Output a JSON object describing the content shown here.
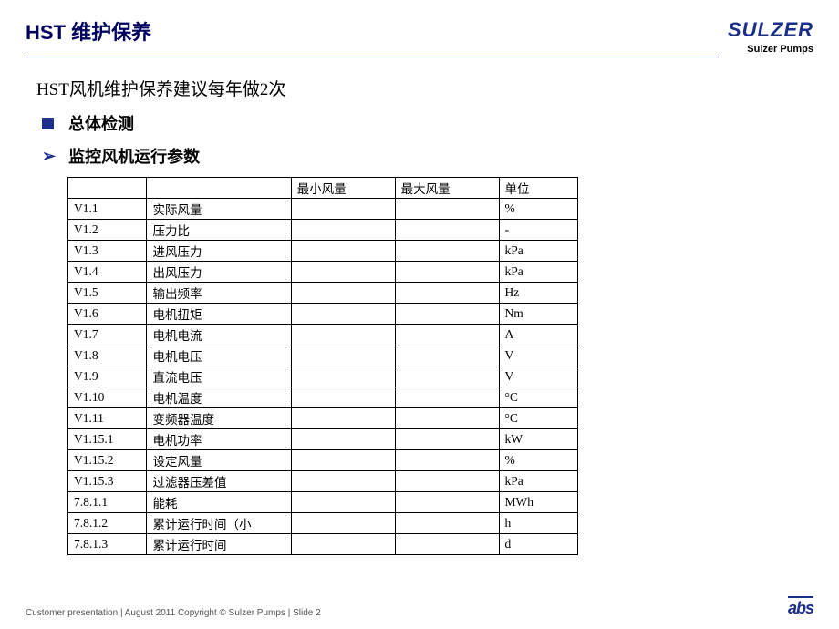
{
  "header": {
    "title": "HST 维护保养",
    "brand_logo": "SULZER",
    "brand_sub": "Sulzer Pumps"
  },
  "content": {
    "subtitle": "HST风机维护保养建议每年做2次",
    "bullet1": "总体检测",
    "bullet2": "监控风机运行参数"
  },
  "table": {
    "headers": [
      "",
      "",
      "最小风量",
      "最大风量",
      "单位"
    ],
    "rows": [
      [
        "V1.1",
        "实际风量",
        "",
        "",
        "%"
      ],
      [
        "V1.2",
        "压力比",
        "",
        "",
        "-"
      ],
      [
        "V1.3",
        "进风压力",
        "",
        "",
        "kPa"
      ],
      [
        "V1.4",
        "出风压力",
        "",
        "",
        "kPa"
      ],
      [
        "V1.5",
        "输出频率",
        "",
        "",
        "Hz"
      ],
      [
        "V1.6",
        "电机扭矩",
        "",
        "",
        "Nm"
      ],
      [
        "V1.7",
        "电机电流",
        "",
        "",
        "A"
      ],
      [
        "V1.8",
        "电机电压",
        "",
        "",
        "V"
      ],
      [
        "V1.9",
        "直流电压",
        "",
        "",
        "V"
      ],
      [
        "V1.10",
        "电机温度",
        "",
        "",
        "°C"
      ],
      [
        "V1.11",
        "变频器温度",
        "",
        "",
        "°C"
      ],
      [
        "V1.15.1",
        "电机功率",
        "",
        "",
        "kW"
      ],
      [
        "V1.15.2",
        "设定风量",
        "",
        "",
        "%"
      ],
      [
        "V1.15.3",
        "过滤器压差值",
        "",
        "",
        "kPa"
      ],
      [
        "7.8.1.1",
        "能耗",
        "",
        "",
        "MWh"
      ],
      [
        "7.8.1.2",
        "累计运行时间（小",
        "",
        "",
        "h"
      ],
      [
        "7.8.1.3",
        "累计运行时间",
        "",
        "",
        "d"
      ]
    ]
  },
  "footer": {
    "text": "Customer presentation | August 2011 Copyright © Sulzer Pumps  | Slide 2",
    "abs": "abs"
  },
  "colors": {
    "brand_blue": "#1a2f8c",
    "title_navy": "#000060",
    "text_black": "#000000",
    "footer_gray": "#555555",
    "background": "#ffffff"
  }
}
